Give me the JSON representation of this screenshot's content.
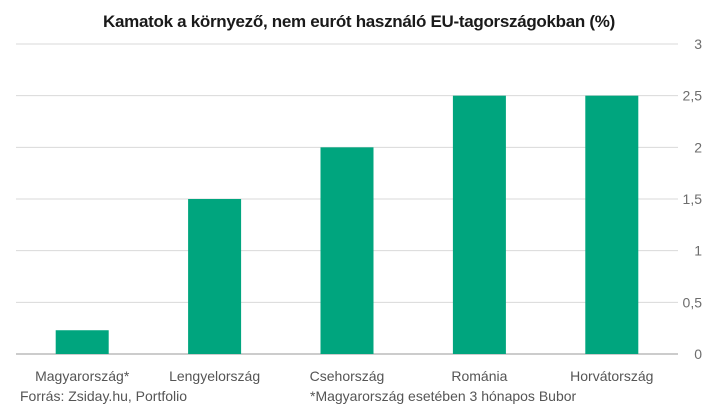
{
  "chart_data": {
    "type": "bar",
    "title": "Kamatok a környező, nem eurót használó EU-tagországokban (%)",
    "categories": [
      "Magyarország*",
      "Lengyelország",
      "Csehország",
      "Románia",
      "Horvátország"
    ],
    "values": [
      0.23,
      1.5,
      2.0,
      2.5,
      2.5
    ],
    "ylim": [
      0,
      3
    ],
    "yticks": [
      "0",
      "0,5",
      "1",
      "1,5",
      "2",
      "2,5",
      "3"
    ],
    "y_axis_side": "right",
    "grid": true,
    "bar_color": "#00a57e",
    "source": "Forrás: Zsiday.hu, Portfolio",
    "footnote": "*Magyarország esetében 3 hónapos Bubor"
  }
}
